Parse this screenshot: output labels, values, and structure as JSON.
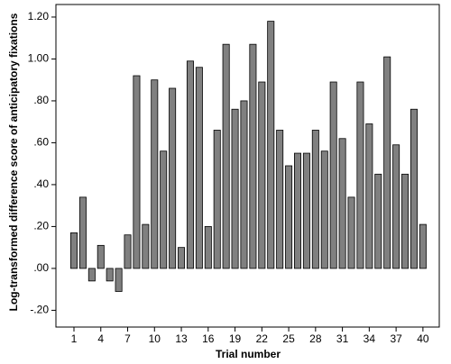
{
  "chart_data": {
    "type": "bar",
    "y_label": "Log-transformed difference score of anticipatory fixations",
    "x_label": "Trial number",
    "categories": [
      "1",
      null,
      null,
      "4",
      null,
      null,
      "7",
      null,
      null,
      "10",
      null,
      null,
      "13",
      null,
      null,
      "16",
      null,
      null,
      "19",
      null,
      null,
      "22",
      null,
      null,
      "25",
      null,
      null,
      "28",
      null,
      null,
      "31",
      null,
      null,
      "34",
      null,
      null,
      "37",
      null,
      null,
      "40"
    ],
    "values": [
      0.17,
      0.34,
      -0.06,
      0.11,
      -0.06,
      -0.11,
      0.16,
      0.92,
      0.21,
      0.9,
      0.56,
      0.86,
      0.1,
      0.99,
      0.96,
      0.2,
      0.66,
      1.07,
      0.76,
      0.8,
      1.07,
      0.89,
      1.18,
      0.66,
      0.49,
      0.55,
      0.55,
      0.66,
      0.56,
      0.89,
      0.62,
      0.34,
      0.89,
      0.69,
      0.45,
      1.01,
      0.59,
      0.45,
      0.76,
      0.21
    ],
    "color": "#808080",
    "ylim": [
      -0.28,
      1.26
    ],
    "yticks": [
      {
        "value": -0.2,
        "label": "-.20"
      },
      {
        "value": 0,
        "label": ".00"
      },
      {
        "value": 0.2,
        "label": ".20"
      },
      {
        "value": 0.4,
        "label": ".40"
      },
      {
        "value": 0.6,
        "label": ".60"
      },
      {
        "value": 0.8,
        "label": ".80"
      },
      {
        "value": 1.0,
        "label": "1.00"
      },
      {
        "value": 1.2,
        "label": "1.20"
      }
    ]
  }
}
